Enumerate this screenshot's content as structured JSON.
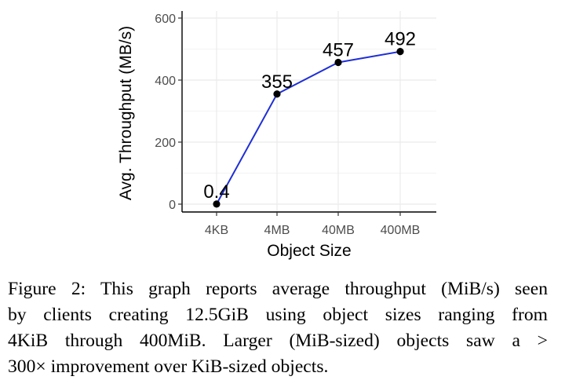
{
  "chart_data": {
    "type": "line",
    "categories": [
      "4KB",
      "4MB",
      "40MB",
      "400MB"
    ],
    "series": [
      {
        "values": [
          0.4,
          355,
          457,
          492
        ],
        "labels": [
          "0.4",
          "355",
          "457",
          "492"
        ],
        "color": "#1f2fd6"
      }
    ],
    "xlabel": "Object Size",
    "ylabel": "Avg. Throughput (MB/s)",
    "ylim": [
      0,
      620
    ],
    "yticks": [
      0,
      200,
      400,
      600
    ],
    "ytick_labels": [
      "0",
      "200",
      "400",
      "600"
    ],
    "grid": true,
    "legend": "none"
  },
  "caption": {
    "lines": [
      "Figure 2: This graph reports average throughput (MiB/s) seen",
      "by clients creating 12.5GiB using object sizes ranging from",
      "4KiB through 400MiB. Larger (MiB-sized) objects saw a >",
      "300× improvement over KiB-sized objects."
    ]
  },
  "colors": {
    "line": "#1f2fd6",
    "point": "#000000",
    "grid": "#ebebeb",
    "axis": "#000000"
  }
}
